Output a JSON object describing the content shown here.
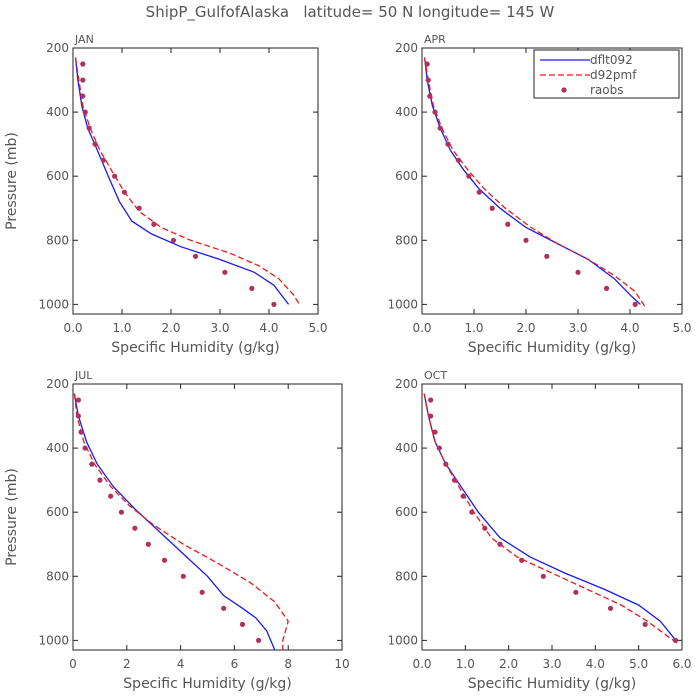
{
  "page_title": "ShipP_GulfofAlaska   latitude= 50 N longitude= 145 W",
  "legend": [
    {
      "label": "dflt092",
      "style": "solid",
      "color": "#1a1aee"
    },
    {
      "label": "d92pmf",
      "style": "dashed",
      "color": "#ee1a1a"
    },
    {
      "label": "raobs",
      "style": "dots",
      "color": "#b03060"
    }
  ],
  "chart_data": [
    {
      "type": "line",
      "title": "JAN",
      "xlabel": "Specific Humidity (g/kg)",
      "ylabel": "Pressure (mb)",
      "xlim": [
        0,
        5
      ],
      "ylim": [
        1030,
        200
      ],
      "xticks": [
        0,
        1,
        2,
        3,
        4,
        5
      ],
      "xtick_labels": [
        "0.0",
        "1.0",
        "2.0",
        "3.0",
        "4.0",
        "5.0"
      ],
      "yticks": [
        200,
        400,
        600,
        800,
        1000
      ],
      "ytick_labels": [
        "200",
        "400",
        "600",
        "800",
        "1000"
      ],
      "show_legend": false,
      "series": [
        {
          "name": "dflt092",
          "style": "solid",
          "points": [
            [
              0.05,
              230
            ],
            [
              0.1,
              300
            ],
            [
              0.18,
              380
            ],
            [
              0.3,
              450
            ],
            [
              0.5,
              520
            ],
            [
              0.72,
              600
            ],
            [
              0.95,
              680
            ],
            [
              1.2,
              740
            ],
            [
              1.6,
              780
            ],
            [
              2.2,
              820
            ],
            [
              3.0,
              860
            ],
            [
              3.7,
              900
            ],
            [
              4.1,
              940
            ],
            [
              4.3,
              980
            ],
            [
              4.4,
              1000
            ]
          ]
        },
        {
          "name": "d92pmf",
          "style": "dashed",
          "points": [
            [
              0.05,
              230
            ],
            [
              0.12,
              300
            ],
            [
              0.2,
              380
            ],
            [
              0.35,
              450
            ],
            [
              0.55,
              520
            ],
            [
              0.78,
              580
            ],
            [
              1.05,
              650
            ],
            [
              1.35,
              710
            ],
            [
              1.8,
              760
            ],
            [
              2.4,
              800
            ],
            [
              3.2,
              840
            ],
            [
              3.8,
              880
            ],
            [
              4.2,
              920
            ],
            [
              4.5,
              970
            ],
            [
              4.62,
              1000
            ]
          ]
        },
        {
          "name": "raobs",
          "style": "dots",
          "points": [
            [
              0.2,
              250
            ],
            [
              0.2,
              300
            ],
            [
              0.2,
              350
            ],
            [
              0.25,
              400
            ],
            [
              0.33,
              450
            ],
            [
              0.45,
              500
            ],
            [
              0.62,
              550
            ],
            [
              0.85,
              600
            ],
            [
              1.05,
              650
            ],
            [
              1.35,
              700
            ],
            [
              1.65,
              750
            ],
            [
              2.05,
              800
            ],
            [
              2.5,
              850
            ],
            [
              3.1,
              900
            ],
            [
              3.65,
              950
            ],
            [
              4.1,
              1000
            ]
          ]
        }
      ]
    },
    {
      "type": "line",
      "title": "APR",
      "xlabel": "Specific Humidity (g/kg)",
      "ylabel": "",
      "xlim": [
        0,
        5
      ],
      "ylim": [
        1030,
        200
      ],
      "xticks": [
        0,
        1,
        2,
        3,
        4,
        5
      ],
      "xtick_labels": [
        "0.0",
        "1.0",
        "2.0",
        "3.0",
        "4.0",
        "5.0"
      ],
      "yticks": [
        200,
        400,
        600,
        800,
        1000
      ],
      "ytick_labels": [
        "200",
        "400",
        "600",
        "800",
        "1000"
      ],
      "show_legend": true,
      "series": [
        {
          "name": "dflt092",
          "style": "solid",
          "points": [
            [
              0.05,
              230
            ],
            [
              0.1,
              300
            ],
            [
              0.2,
              380
            ],
            [
              0.35,
              450
            ],
            [
              0.55,
              520
            ],
            [
              0.8,
              580
            ],
            [
              1.1,
              640
            ],
            [
              1.5,
              700
            ],
            [
              2.0,
              760
            ],
            [
              2.6,
              810
            ],
            [
              3.2,
              860
            ],
            [
              3.7,
              920
            ],
            [
              4.0,
              970
            ],
            [
              4.2,
              1000
            ]
          ]
        },
        {
          "name": "d92pmf",
          "style": "dashed",
          "points": [
            [
              0.05,
              230
            ],
            [
              0.12,
              300
            ],
            [
              0.22,
              380
            ],
            [
              0.38,
              450
            ],
            [
              0.6,
              520
            ],
            [
              0.88,
              580
            ],
            [
              1.2,
              640
            ],
            [
              1.6,
              700
            ],
            [
              2.1,
              760
            ],
            [
              2.6,
              810
            ],
            [
              3.2,
              860
            ],
            [
              3.7,
              910
            ],
            [
              4.1,
              960
            ],
            [
              4.3,
              1010
            ]
          ]
        },
        {
          "name": "raobs",
          "style": "dots",
          "points": [
            [
              0.1,
              250
            ],
            [
              0.12,
              300
            ],
            [
              0.15,
              350
            ],
            [
              0.25,
              400
            ],
            [
              0.35,
              450
            ],
            [
              0.5,
              500
            ],
            [
              0.7,
              550
            ],
            [
              0.9,
              600
            ],
            [
              1.1,
              650
            ],
            [
              1.35,
              700
            ],
            [
              1.65,
              750
            ],
            [
              2.0,
              800
            ],
            [
              2.4,
              850
            ],
            [
              3.0,
              900
            ],
            [
              3.55,
              950
            ],
            [
              4.1,
              1000
            ]
          ]
        }
      ]
    },
    {
      "type": "line",
      "title": "JUL",
      "xlabel": "Specific Humidity (g/kg)",
      "ylabel": "Pressure (mb)",
      "xlim": [
        0,
        10
      ],
      "ylim": [
        1030,
        200
      ],
      "xticks": [
        0,
        2,
        4,
        6,
        8,
        10
      ],
      "xtick_labels": [
        "0",
        "2",
        "4",
        "6",
        "8",
        "10"
      ],
      "yticks": [
        200,
        400,
        600,
        800,
        1000
      ],
      "ytick_labels": [
        "200",
        "400",
        "600",
        "800",
        "1000"
      ],
      "show_legend": false,
      "series": [
        {
          "name": "dflt092",
          "style": "solid",
          "points": [
            [
              0.05,
              230
            ],
            [
              0.2,
              300
            ],
            [
              0.5,
              380
            ],
            [
              0.9,
              450
            ],
            [
              1.5,
              520
            ],
            [
              2.3,
              590
            ],
            [
              3.2,
              660
            ],
            [
              4.1,
              730
            ],
            [
              5.0,
              800
            ],
            [
              5.6,
              860
            ],
            [
              6.3,
              900
            ],
            [
              6.8,
              930
            ],
            [
              7.2,
              970
            ],
            [
              7.5,
              1030
            ]
          ]
        },
        {
          "name": "d92pmf",
          "style": "dashed",
          "points": [
            [
              0.05,
              230
            ],
            [
              0.15,
              300
            ],
            [
              0.4,
              380
            ],
            [
              0.8,
              450
            ],
            [
              1.4,
              520
            ],
            [
              2.1,
              580
            ],
            [
              3.0,
              640
            ],
            [
              4.1,
              700
            ],
            [
              5.4,
              760
            ],
            [
              6.6,
              820
            ],
            [
              7.5,
              880
            ],
            [
              8.0,
              940
            ],
            [
              7.8,
              1000
            ],
            [
              7.8,
              1030
            ]
          ]
        },
        {
          "name": "raobs",
          "style": "dots",
          "points": [
            [
              0.2,
              250
            ],
            [
              0.2,
              300
            ],
            [
              0.3,
              350
            ],
            [
              0.45,
              400
            ],
            [
              0.7,
              450
            ],
            [
              1.0,
              500
            ],
            [
              1.4,
              550
            ],
            [
              1.8,
              600
            ],
            [
              2.3,
              650
            ],
            [
              2.8,
              700
            ],
            [
              3.4,
              750
            ],
            [
              4.1,
              800
            ],
            [
              4.8,
              850
            ],
            [
              5.6,
              900
            ],
            [
              6.3,
              950
            ],
            [
              6.9,
              1000
            ]
          ]
        }
      ]
    },
    {
      "type": "line",
      "title": "OCT",
      "xlabel": "Specific Humidity (g/kg)",
      "ylabel": "",
      "xlim": [
        0,
        6
      ],
      "ylim": [
        1030,
        200
      ],
      "xticks": [
        0,
        1,
        2,
        3,
        4,
        5,
        6
      ],
      "xtick_labels": [
        "0.0",
        "1.0",
        "2.0",
        "3.0",
        "4.0",
        "5.0",
        "6.0"
      ],
      "yticks": [
        200,
        400,
        600,
        800,
        1000
      ],
      "ytick_labels": [
        "200",
        "400",
        "600",
        "800",
        "1000"
      ],
      "show_legend": false,
      "series": [
        {
          "name": "dflt092",
          "style": "solid",
          "points": [
            [
              0.05,
              230
            ],
            [
              0.15,
              300
            ],
            [
              0.3,
              380
            ],
            [
              0.55,
              450
            ],
            [
              0.9,
              520
            ],
            [
              1.3,
              600
            ],
            [
              1.8,
              680
            ],
            [
              2.5,
              740
            ],
            [
              3.3,
              790
            ],
            [
              4.2,
              840
            ],
            [
              5.0,
              890
            ],
            [
              5.5,
              940
            ],
            [
              5.8,
              990
            ],
            [
              5.85,
              1000
            ]
          ]
        },
        {
          "name": "d92pmf",
          "style": "dashed",
          "points": [
            [
              0.05,
              230
            ],
            [
              0.15,
              300
            ],
            [
              0.3,
              380
            ],
            [
              0.55,
              450
            ],
            [
              0.85,
              520
            ],
            [
              1.2,
              600
            ],
            [
              1.6,
              680
            ],
            [
              2.2,
              740
            ],
            [
              3.0,
              790
            ],
            [
              3.8,
              840
            ],
            [
              4.6,
              890
            ],
            [
              5.2,
              940
            ],
            [
              5.6,
              980
            ],
            [
              5.9,
              1010
            ]
          ]
        },
        {
          "name": "raobs",
          "style": "dots",
          "points": [
            [
              0.2,
              250
            ],
            [
              0.2,
              300
            ],
            [
              0.3,
              350
            ],
            [
              0.4,
              400
            ],
            [
              0.55,
              450
            ],
            [
              0.75,
              500
            ],
            [
              0.95,
              550
            ],
            [
              1.15,
              600
            ],
            [
              1.45,
              650
            ],
            [
              1.8,
              700
            ],
            [
              2.3,
              750
            ],
            [
              2.8,
              800
            ],
            [
              3.55,
              850
            ],
            [
              4.35,
              900
            ],
            [
              5.15,
              950
            ],
            [
              5.85,
              1000
            ]
          ]
        }
      ]
    }
  ]
}
